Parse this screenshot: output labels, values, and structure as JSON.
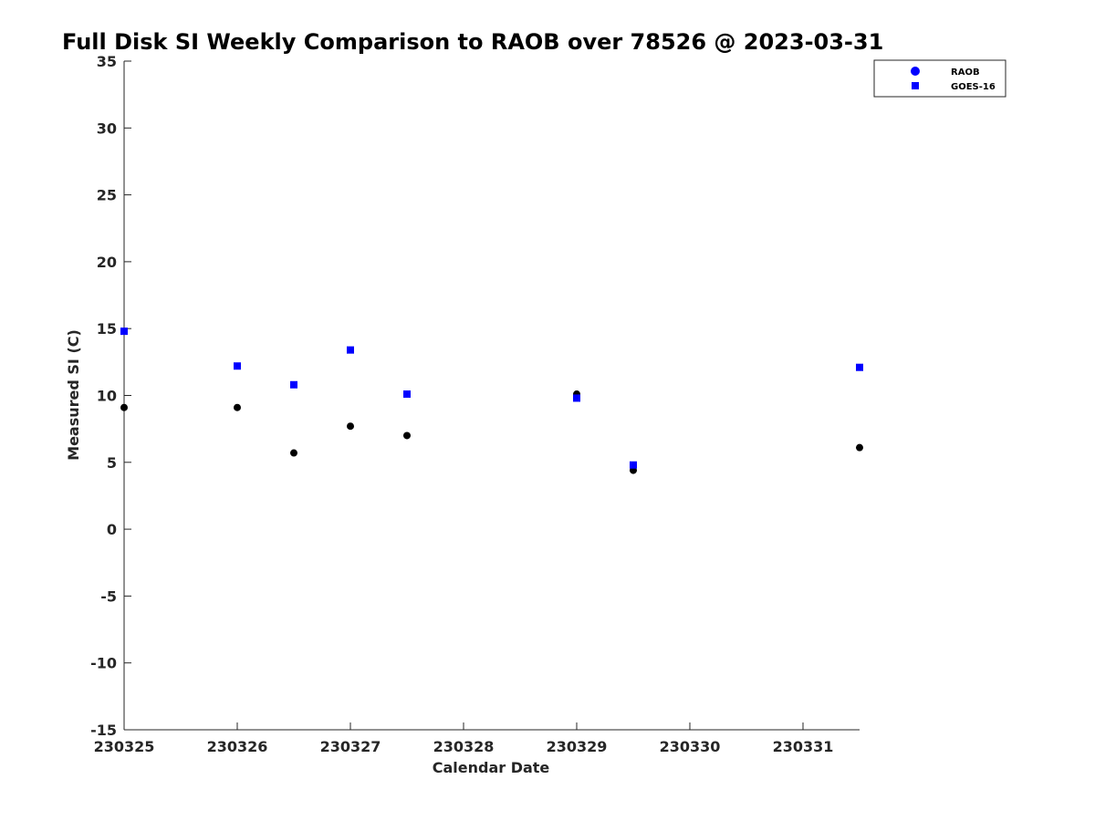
{
  "chart_data": {
    "type": "scatter",
    "title": "Full Disk SI Weekly Comparison to RAOB over 78526 @ 2023-03-31",
    "xlabel": "Calendar Date",
    "ylabel": "Measured SI (C)",
    "xlim": [
      "230325",
      "230331 12:00"
    ],
    "ylim": [
      -15,
      35
    ],
    "xticks": [
      "230325",
      "230326",
      "230327",
      "230328",
      "230329",
      "230330",
      "230331"
    ],
    "yticks": [
      -15,
      -10,
      -5,
      0,
      5,
      10,
      15,
      20,
      25,
      30,
      35
    ],
    "grid": false,
    "legend_position": "top-right",
    "series": [
      {
        "name": "RAOB",
        "marker": "circle",
        "color": "#000000",
        "legend_color": "#0000ff",
        "points": [
          {
            "x": "230325 00:00",
            "y": 9.1
          },
          {
            "x": "230326 00:00",
            "y": 9.1
          },
          {
            "x": "230326 12:00",
            "y": 5.7
          },
          {
            "x": "230327 00:00",
            "y": 7.7
          },
          {
            "x": "230327 12:00",
            "y": 7.0
          },
          {
            "x": "230329 00:00",
            "y": 10.1
          },
          {
            "x": "230329 12:00",
            "y": 4.4
          },
          {
            "x": "230331 12:00",
            "y": 6.1
          }
        ]
      },
      {
        "name": "GOES-16",
        "marker": "square",
        "color": "#0000ff",
        "legend_color": "#0000ff",
        "points": [
          {
            "x": "230325 00:00",
            "y": 14.8
          },
          {
            "x": "230326 00:00",
            "y": 12.2
          },
          {
            "x": "230326 12:00",
            "y": 10.8
          },
          {
            "x": "230327 00:00",
            "y": 13.4
          },
          {
            "x": "230327 12:00",
            "y": 10.1
          },
          {
            "x": "230329 00:00",
            "y": 9.8
          },
          {
            "x": "230329 12:00",
            "y": 4.8
          },
          {
            "x": "230331 12:00",
            "y": 12.1
          }
        ]
      }
    ]
  }
}
